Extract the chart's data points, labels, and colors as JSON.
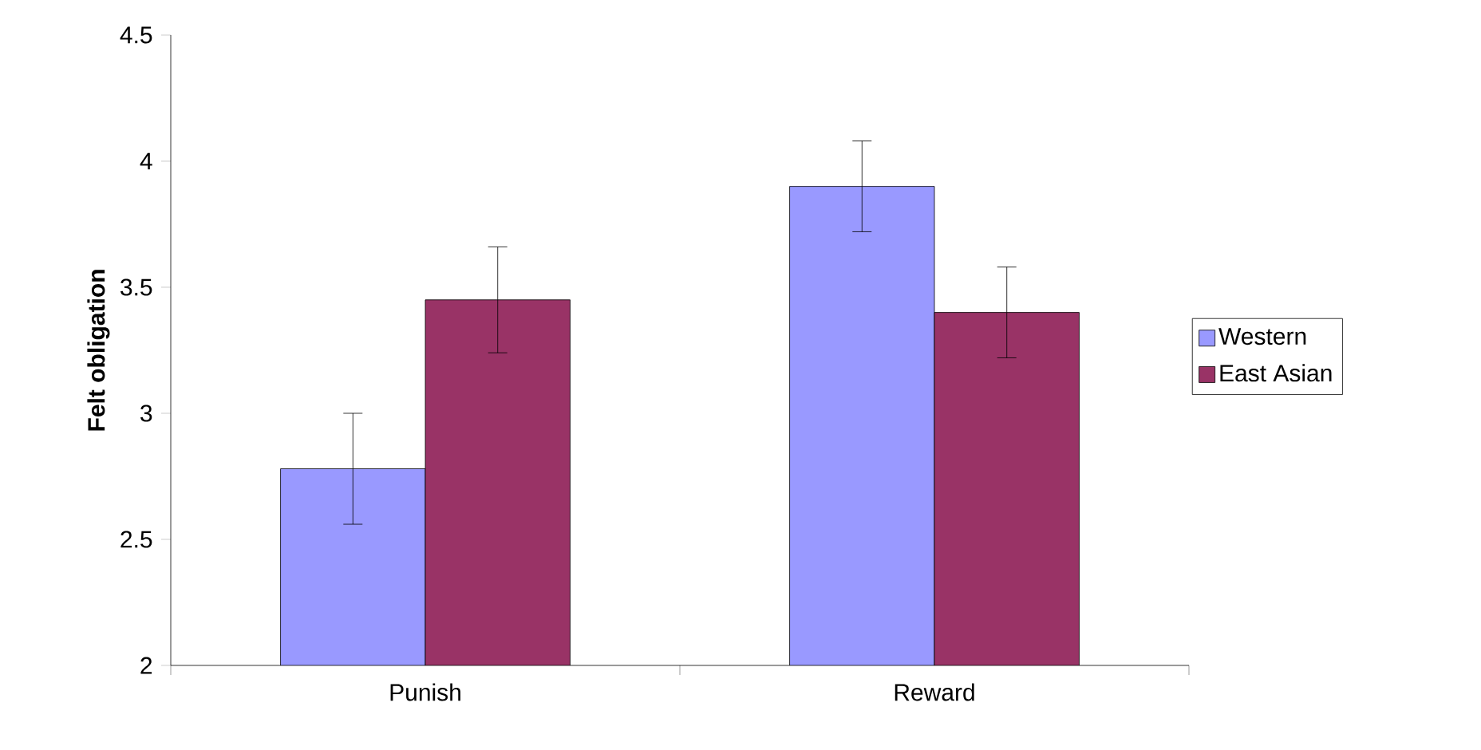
{
  "chart_data": {
    "type": "bar",
    "ylabel": "Felt obligation",
    "categories": [
      "Punish",
      "Reward"
    ],
    "series": [
      {
        "name": "Western",
        "color": "#9999ff",
        "values": [
          2.78,
          3.9
        ],
        "errors": [
          0.22,
          0.18
        ]
      },
      {
        "name": "East Asian",
        "color": "#993366",
        "values": [
          3.45,
          3.4
        ],
        "errors": [
          0.21,
          0.18
        ]
      }
    ],
    "ylim": [
      2,
      4.5
    ],
    "yticks": [
      2,
      2.5,
      3,
      3.5,
      4,
      4.5
    ],
    "grid": false,
    "legend": "right"
  }
}
